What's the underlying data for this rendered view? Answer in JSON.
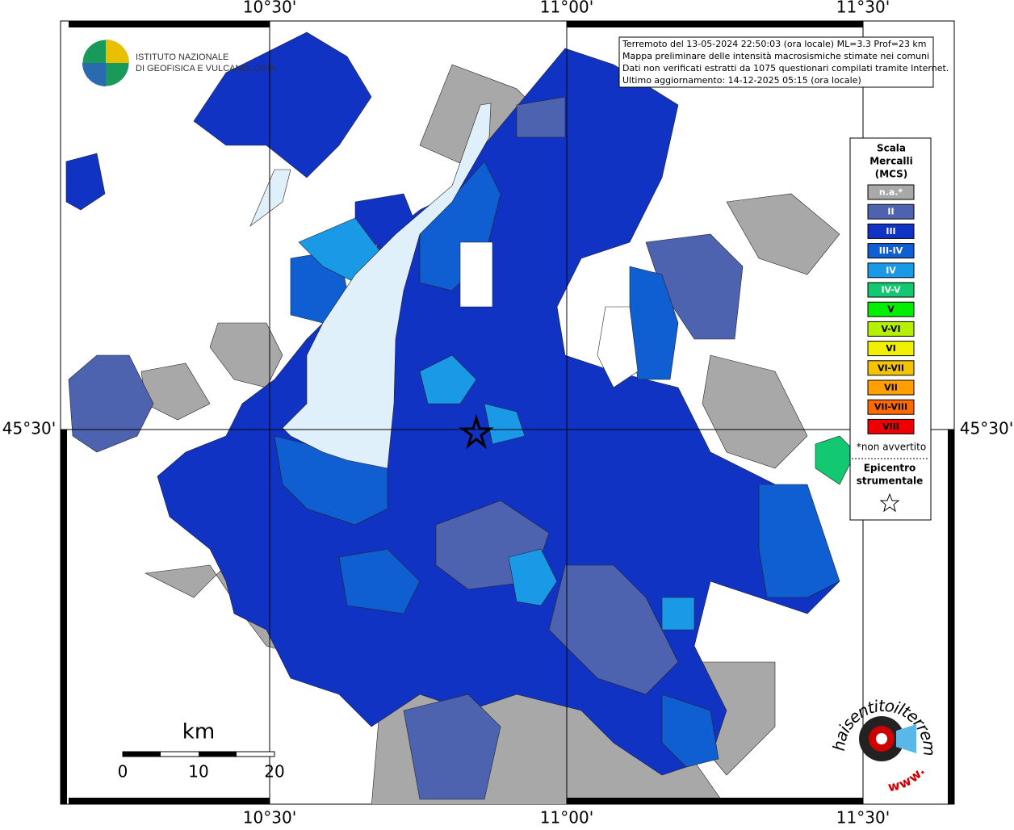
{
  "map": {
    "grid_labels": {
      "top": [
        "10°30'",
        "11°00'",
        "11°30'"
      ],
      "bottom": [
        "10°30'",
        "11°00'",
        "11°30'"
      ],
      "left": "45°30'",
      "right": "45°30'"
    },
    "institute": [
      "ISTITUTO NAZIONALE",
      "DI GEOFISICA E VULCANOLOGIA"
    ],
    "info": [
      "Terremoto del 13-05-2024 22:50:03 (ora locale) ML=3.3 Prof=23 km",
      "Mappa preliminare delle intensità macrosismiche stimate nei comuni",
      "Dati non verificati estratti da 1075 questionari compilati tramite Internet.",
      "Ultimo aggiornamento: 14-12-2025 05:15 (ora locale)"
    ],
    "legend": {
      "title": [
        "Scala",
        "Mercalli",
        "(MCS)"
      ],
      "items": [
        {
          "label": "n.a.*",
          "color": "#a8a8a8"
        },
        {
          "label": "II",
          "color": "#4d63b0"
        },
        {
          "label": "III",
          "color": "#1133c4"
        },
        {
          "label": "III-IV",
          "color": "#0f5fd2"
        },
        {
          "label": "IV",
          "color": "#1a9ae6"
        },
        {
          "label": "IV-V",
          "color": "#12c870"
        },
        {
          "label": "V",
          "color": "#00ee00"
        },
        {
          "label": "V-VI",
          "color": "#b4f000"
        },
        {
          "label": "VI",
          "color": "#f0f000"
        },
        {
          "label": "VI-VII",
          "color": "#f5c400"
        },
        {
          "label": "VII",
          "color": "#ffa000"
        },
        {
          "label": "VII-VIII",
          "color": "#ff6a00"
        },
        {
          "label": "VIII",
          "color": "#ee0000"
        }
      ],
      "note": "*non avvertito",
      "epicenter": [
        "Epicentro",
        "strumentale"
      ]
    },
    "scale": {
      "unit": "km",
      "ticks": [
        "0",
        "10",
        "20"
      ]
    },
    "logo": {
      "top": "haisentitoilterremoto.it",
      "bottom": "www."
    }
  }
}
